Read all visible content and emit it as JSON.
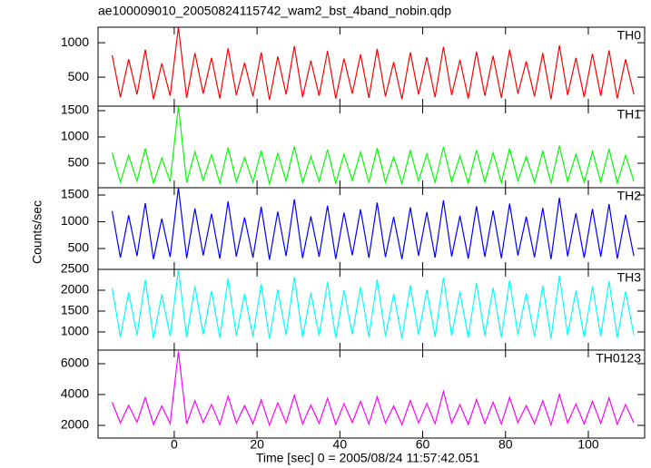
{
  "chart_data": {
    "type": "line",
    "title": "ae100009010_20050824115742_wam2_bst_4band_nobin.qdp",
    "xlabel": "Time [sec] 0 = 2005/08/24 11:57:42.051",
    "ylabel": "Counts/sec",
    "xlim": [
      -18.4,
      113.6
    ],
    "xticks": [
      0,
      20,
      40,
      60,
      80,
      100
    ],
    "x": [
      -15,
      -13,
      -11,
      -9,
      -7,
      -5,
      -3,
      -1,
      1,
      3,
      5,
      7,
      9,
      11,
      13,
      15,
      17,
      19,
      21,
      23,
      25,
      27,
      29,
      31,
      33,
      35,
      37,
      39,
      41,
      43,
      45,
      47,
      49,
      51,
      53,
      55,
      57,
      59,
      61,
      63,
      65,
      67,
      69,
      71,
      73,
      75,
      77,
      79,
      81,
      83,
      85,
      87,
      89,
      91,
      93,
      95,
      97,
      99,
      101,
      103,
      105,
      107,
      109,
      111
    ],
    "series": [
      {
        "name": "TH0",
        "color": "#ff0000",
        "ylim": [
          80,
          1225
        ],
        "yticks": [
          500,
          1000
        ],
        "values": [
          820,
          210,
          760,
          250,
          900,
          180,
          700,
          230,
          1224,
          200,
          850,
          260,
          780,
          190,
          920,
          240,
          710,
          220,
          860,
          170,
          800,
          250,
          950,
          210,
          740,
          230,
          880,
          190,
          770,
          260,
          830,
          200,
          910,
          220,
          720,
          180,
          860,
          250,
          790,
          210,
          940,
          240,
          750,
          190,
          870,
          230,
          810,
          200,
          900,
          260,
          730,
          220,
          850,
          180,
          960,
          240,
          780,
          210,
          840,
          230,
          890,
          190,
          760,
          250
        ]
      },
      {
        "name": "TH1",
        "color": "#00ff00",
        "ylim": [
          34,
          1586
        ],
        "yticks": [
          500,
          1000,
          1500
        ],
        "values": [
          700,
          140,
          650,
          160,
          780,
          120,
          600,
          150,
          1586,
          130,
          720,
          170,
          660,
          120,
          800,
          150,
          610,
          140,
          740,
          110,
          690,
          160,
          820,
          130,
          630,
          150,
          760,
          120,
          670,
          170,
          710,
          130,
          790,
          140,
          620,
          115,
          740,
          160,
          680,
          135,
          810,
          150,
          640,
          120,
          750,
          145,
          700,
          130,
          780,
          165,
          625,
          140,
          730,
          115,
          830,
          155,
          670,
          135,
          720,
          145,
          770,
          125,
          650,
          160
        ]
      },
      {
        "name": "TH2",
        "color": "#0000ff",
        "ylim": [
          110,
          1636
        ],
        "yticks": [
          500,
          1000,
          1500
        ],
        "values": [
          1200,
          330,
          1120,
          360,
          1350,
          300,
          1060,
          340,
          1636,
          320,
          1250,
          370,
          1150,
          310,
          1380,
          350,
          1080,
          330,
          1280,
          290,
          1190,
          360,
          1420,
          320,
          1100,
          345,
          1300,
          305,
          1170,
          375,
          1230,
          325,
          1360,
          340,
          1090,
          300,
          1270,
          365,
          1180,
          330,
          1400,
          350,
          1110,
          310,
          1290,
          345,
          1210,
          320,
          1340,
          370,
          1095,
          335,
          1260,
          300,
          1450,
          355,
          1160,
          325,
          1240,
          345,
          1330,
          310,
          1130,
          360
        ]
      },
      {
        "name": "TH3",
        "color": "#00ffff",
        "ylim": [
          565,
          2500
        ],
        "yticks": [
          1000,
          1500,
          2000,
          2500
        ],
        "values": [
          2050,
          880,
          1950,
          920,
          2250,
          850,
          1900,
          900,
          2500,
          870,
          2100,
          940,
          1980,
          860,
          2280,
          910,
          1920,
          890,
          2150,
          840,
          2020,
          930,
          2320,
          870,
          1940,
          905,
          2200,
          855,
          2000,
          945,
          2080,
          875,
          2260,
          900,
          1910,
          850,
          2120,
          935,
          2010,
          880,
          2300,
          910,
          1960,
          860,
          2170,
          905,
          2060,
          870,
          2240,
          940,
          1930,
          885,
          2110,
          845,
          2350,
          925,
          1990,
          875,
          2090,
          900,
          2220,
          860,
          1970,
          930
        ]
      },
      {
        "name": "TH0123",
        "color": "#ff00ff",
        "ylim": [
          1176,
          6882
        ],
        "yticks": [
          2000,
          4000,
          6000
        ],
        "values": [
          3500,
          2150,
          3300,
          2200,
          3800,
          2050,
          3250,
          2120,
          6800,
          2100,
          3600,
          2180,
          3350,
          2060,
          3900,
          2140,
          3280,
          2110,
          3650,
          2020,
          3450,
          2170,
          3950,
          2090,
          3320,
          2130,
          3750,
          2070,
          3400,
          2190,
          3550,
          2100,
          3850,
          2150,
          3260,
          2040,
          3620,
          2160,
          3420,
          2110,
          4200,
          2140,
          3340,
          2060,
          3680,
          2130,
          3500,
          2090,
          3820,
          2180,
          3290,
          2120,
          3600,
          2030,
          4000,
          2150,
          3380,
          2100,
          3560,
          2130,
          3780,
          2070,
          3350,
          2160
        ]
      }
    ]
  }
}
